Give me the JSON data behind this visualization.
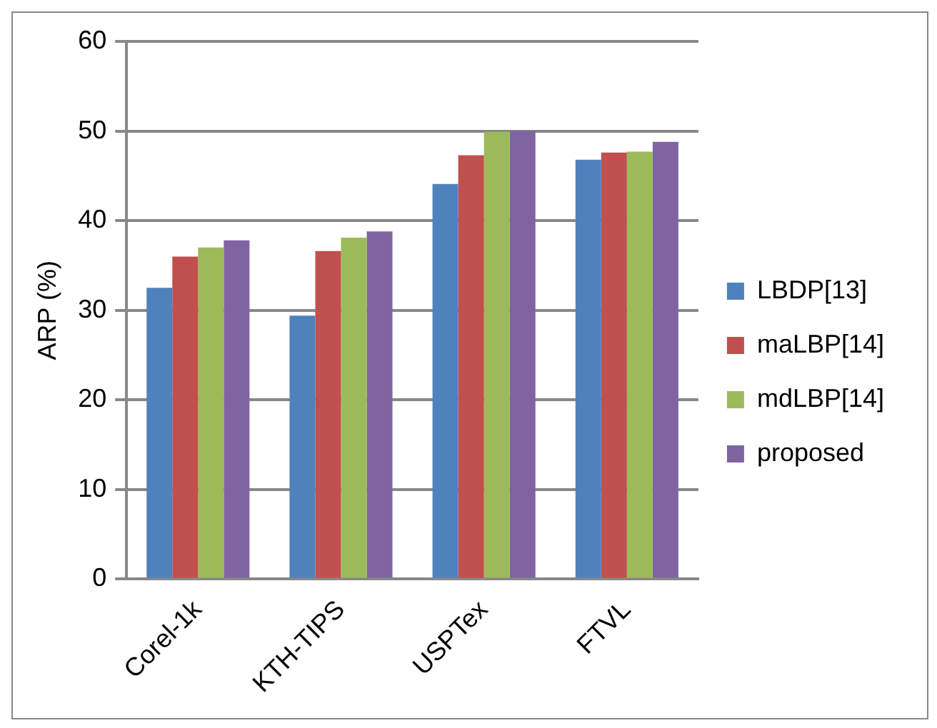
{
  "chart_data": {
    "type": "bar",
    "ylabel": "ARP (%)",
    "categories": [
      "Corel-1k",
      "KTH-TIPS",
      "USPTex",
      "FTVL"
    ],
    "series": [
      {
        "name": "LBDP[13]",
        "color": "#4f81bd",
        "values": [
          32.5,
          29.4,
          44.1,
          46.8
        ]
      },
      {
        "name": "maLBP[14]",
        "color": "#c0504d",
        "values": [
          36.0,
          36.6,
          47.3,
          47.6
        ]
      },
      {
        "name": "mdLBP[14]",
        "color": "#9bbb59",
        "values": [
          37.0,
          38.1,
          49.9,
          47.7
        ]
      },
      {
        "name": "proposed",
        "color": "#8064a2",
        "values": [
          37.8,
          38.8,
          50.0,
          48.8
        ]
      }
    ],
    "ylim": [
      0,
      60
    ],
    "yticks": [
      0,
      10,
      20,
      30,
      40,
      50,
      60
    ],
    "grid": "y",
    "legend": "right"
  }
}
